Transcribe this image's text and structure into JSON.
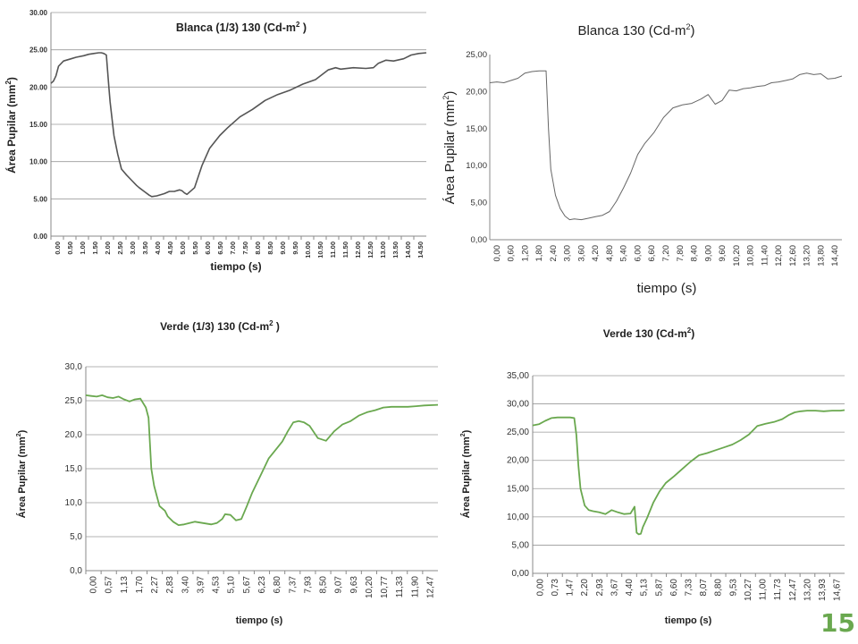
{
  "page_number": "15",
  "chart_data": [
    {
      "id": "c1",
      "type": "line",
      "title_main": "Blanca  (1/3) 130 (Cd-m",
      "title_sup": "2",
      "title_tail": " )",
      "ylabel_main": "Área Pupilar  (mm",
      "ylabel_sup": "2",
      "ylabel_tail": ")",
      "xlabel": "tiempo (s)",
      "ylim": [
        0,
        30
      ],
      "yticks": [
        "0.00",
        "5.00",
        "10.00",
        "15.00",
        "20.00",
        "25.00",
        "30.00"
      ],
      "xticks": [
        "0.00",
        "0.50",
        "1.00",
        "1.50",
        "2.00",
        "2.50",
        "3.00",
        "3.50",
        "4.00",
        "4.50",
        "5.00",
        "5.50",
        "6.00",
        "6.50",
        "7.00",
        "7.50",
        "8.00",
        "8.50",
        "9.00",
        "9.50",
        "10.00",
        "10.50",
        "11.00",
        "11.50",
        "12.00",
        "12.50",
        "13.00",
        "13.50",
        "14.00",
        "14.50"
      ],
      "xlim": [
        0,
        14.9
      ],
      "line_color": "#555555",
      "grid": true,
      "series": [
        {
          "x": [
            0,
            0.1,
            0.2,
            0.3,
            0.5,
            0.8,
            1.0,
            1.3,
            1.5,
            1.7,
            1.9,
            2.0,
            2.1,
            2.2,
            2.3,
            2.35,
            2.5,
            2.65,
            2.8,
            3.0,
            3.2,
            3.4,
            3.5,
            3.7,
            3.9,
            4.0,
            4.2,
            4.5,
            4.7,
            4.9,
            5.1,
            5.2,
            5.3,
            5.4,
            5.5,
            5.7,
            6.0,
            6.3,
            6.7,
            7.0,
            7.5,
            8.0,
            8.5,
            9.0,
            9.5,
            10.0,
            10.5,
            11.0,
            11.3,
            11.5,
            12.0,
            12.5,
            12.8,
            13.0,
            13.3,
            13.6,
            14.0,
            14.3,
            14.6,
            14.9
          ],
          "y": [
            20.5,
            20.8,
            21.5,
            22.8,
            23.5,
            23.8,
            24.0,
            24.2,
            24.4,
            24.5,
            24.6,
            24.6,
            24.5,
            24.3,
            20.0,
            18.0,
            13.5,
            11.0,
            9.0,
            8.2,
            7.5,
            6.8,
            6.5,
            6.0,
            5.5,
            5.3,
            5.4,
            5.7,
            6.0,
            6.0,
            6.2,
            6.1,
            5.8,
            5.6,
            5.9,
            6.5,
            9.5,
            11.8,
            13.5,
            14.5,
            16.0,
            17.0,
            18.2,
            19.0,
            19.6,
            20.4,
            21.0,
            22.3,
            22.6,
            22.4,
            22.6,
            22.5,
            22.6,
            23.2,
            23.6,
            23.5,
            23.8,
            24.3,
            24.5,
            24.6
          ]
        }
      ]
    },
    {
      "id": "c2",
      "type": "line",
      "title_main": "Blanca 130  (Cd-m",
      "title_sup": "2",
      "title_tail": ")",
      "ylabel_main": "Área Pupilar  (mm",
      "ylabel_sup": "2",
      "ylabel_tail": ")",
      "xlabel": "tiempo (s)",
      "ylim": [
        0,
        25
      ],
      "yticks": [
        "0,00",
        "5,00",
        "10,00",
        "15,00",
        "20,00",
        "25,00"
      ],
      "xticks": [
        "0,00",
        "0,60",
        "1,20",
        "1,80",
        "2,40",
        "3,00",
        "3,60",
        "4,20",
        "4,80",
        "5,40",
        "6,00",
        "6,60",
        "7,20",
        "7,80",
        "8,40",
        "9,00",
        "9,60",
        "10,20",
        "10,80",
        "11,40",
        "12,00",
        "12,60",
        "13,20",
        "13,80",
        "14,40"
      ],
      "xlim": [
        0,
        15.0
      ],
      "line_color": "#666666",
      "grid": false,
      "series": [
        {
          "x": [
            0,
            0.3,
            0.6,
            0.9,
            1.2,
            1.5,
            1.8,
            2.1,
            2.4,
            2.5,
            2.6,
            2.8,
            3.0,
            3.2,
            3.4,
            3.6,
            3.9,
            4.2,
            4.5,
            4.8,
            5.1,
            5.4,
            5.7,
            6.0,
            6.3,
            6.6,
            7.0,
            7.4,
            7.8,
            8.2,
            8.6,
            9.0,
            9.3,
            9.6,
            9.9,
            10.2,
            10.5,
            10.8,
            11.1,
            11.4,
            11.7,
            12.0,
            12.3,
            12.6,
            12.9,
            13.2,
            13.5,
            13.8,
            14.1,
            14.4,
            14.7,
            15.0
          ],
          "y": [
            21.2,
            21.3,
            21.2,
            21.5,
            21.8,
            22.5,
            22.7,
            22.8,
            22.8,
            15.0,
            9.5,
            6.0,
            4.2,
            3.2,
            2.7,
            2.8,
            2.7,
            2.9,
            3.1,
            3.3,
            3.8,
            5.2,
            7.0,
            9.0,
            11.5,
            13.0,
            14.5,
            16.5,
            17.8,
            18.2,
            18.4,
            19.0,
            19.6,
            18.3,
            18.8,
            20.2,
            20.1,
            20.4,
            20.5,
            20.7,
            20.8,
            21.2,
            21.3,
            21.5,
            21.7,
            22.3,
            22.5,
            22.3,
            22.4,
            21.7,
            21.8,
            22.1
          ]
        }
      ]
    },
    {
      "id": "c3",
      "type": "line",
      "title_main": "Verde (1/3) 130 (Cd-m",
      "title_sup": "2",
      "title_tail": " )",
      "ylabel_main": "Área Pupilar  (mm",
      "ylabel_sup": "2",
      "ylabel_tail": ")",
      "xlabel": "tiempo (s)",
      "ylim": [
        0,
        30
      ],
      "yticks": [
        "0,0",
        "5,0",
        "10,0",
        "15,0",
        "20,0",
        "25,0",
        "30,0"
      ],
      "xticks": [
        "0,00",
        "0,57",
        "1,13",
        "1,70",
        "2,27",
        "2,83",
        "3,40",
        "3,97",
        "4,53",
        "5,10",
        "5,67",
        "6,23",
        "6,80",
        "7,37",
        "7,93",
        "8,50",
        "9,07",
        "9,63",
        "10,20",
        "10,77",
        "11,33",
        "11,90",
        "12,47"
      ],
      "xlim": [
        0,
        12.9
      ],
      "line_color": "#6aa84f",
      "grid": true,
      "series": [
        {
          "x": [
            0,
            0.2,
            0.4,
            0.6,
            0.8,
            1.0,
            1.2,
            1.4,
            1.6,
            1.8,
            2.0,
            2.2,
            2.3,
            2.4,
            2.5,
            2.6,
            2.7,
            2.9,
            3.0,
            3.2,
            3.4,
            3.6,
            3.8,
            4.0,
            4.3,
            4.6,
            4.8,
            5.0,
            5.1,
            5.3,
            5.5,
            5.7,
            5.9,
            6.1,
            6.4,
            6.7,
            7.0,
            7.2,
            7.4,
            7.6,
            7.8,
            8.0,
            8.2,
            8.5,
            8.8,
            9.1,
            9.4,
            9.7,
            10.0,
            10.3,
            10.6,
            10.9,
            11.2,
            11.5,
            11.8,
            12.1,
            12.4,
            12.9
          ],
          "y": [
            25.8,
            25.7,
            25.6,
            25.8,
            25.5,
            25.4,
            25.6,
            25.2,
            24.9,
            25.2,
            25.3,
            24.0,
            22.5,
            15.0,
            12.5,
            11.0,
            9.5,
            8.8,
            8.0,
            7.2,
            6.7,
            6.8,
            7.0,
            7.2,
            7.0,
            6.8,
            7.0,
            7.6,
            8.3,
            8.2,
            7.4,
            7.6,
            9.5,
            11.5,
            14.0,
            16.5,
            18.0,
            19.0,
            20.5,
            21.8,
            22.0,
            21.8,
            21.3,
            19.5,
            19.1,
            20.5,
            21.5,
            22.0,
            22.8,
            23.3,
            23.6,
            24.0,
            24.1,
            24.1,
            24.1,
            24.2,
            24.3,
            24.4
          ]
        }
      ]
    },
    {
      "id": "c4",
      "type": "line",
      "title_main": "Verde 130 (Cd-m",
      "title_sup": "2",
      "title_tail": ")",
      "ylabel_main": "Área Pupilar  (mm",
      "ylabel_sup": "2",
      "ylabel_tail": ")",
      "xlabel": "tiempo (s)",
      "ylim": [
        0,
        35
      ],
      "yticks": [
        "0,00",
        "5,00",
        "10,00",
        "15,00",
        "20,00",
        "25,00",
        "30,00",
        "35,00"
      ],
      "xticks": [
        "0,00",
        "0,73",
        "1,47",
        "2,20",
        "2,93",
        "3,67",
        "4,40",
        "5,13",
        "5,87",
        "6,60",
        "7,33",
        "8,07",
        "8,80",
        "9,53",
        "10,27",
        "11,00",
        "11,73",
        "12,47",
        "13,20",
        "13,93",
        "14,67"
      ],
      "xlim": [
        0,
        15.0
      ],
      "line_color": "#6aa84f",
      "grid": true,
      "series": [
        {
          "x": [
            0,
            0.3,
            0.6,
            0.9,
            1.2,
            1.5,
            1.8,
            2.0,
            2.1,
            2.2,
            2.3,
            2.5,
            2.7,
            2.9,
            3.2,
            3.5,
            3.8,
            4.1,
            4.4,
            4.7,
            4.9,
            5.0,
            5.1,
            5.2,
            5.3,
            5.5,
            5.8,
            6.1,
            6.4,
            6.8,
            7.2,
            7.6,
            8.0,
            8.4,
            8.8,
            9.2,
            9.6,
            10.0,
            10.4,
            10.8,
            11.2,
            11.6,
            12.0,
            12.3,
            12.6,
            12.9,
            13.2,
            13.6,
            14.0,
            14.4,
            14.8,
            15.0
          ],
          "y": [
            26.2,
            26.4,
            27.0,
            27.5,
            27.6,
            27.6,
            27.6,
            27.5,
            24.5,
            19.0,
            15.0,
            12.0,
            11.2,
            11.0,
            10.8,
            10.5,
            11.2,
            10.8,
            10.5,
            10.6,
            11.8,
            7.2,
            6.9,
            7.0,
            8.2,
            9.8,
            12.5,
            14.5,
            16.0,
            17.2,
            18.5,
            19.8,
            20.9,
            21.3,
            21.8,
            22.3,
            22.8,
            23.6,
            24.6,
            26.1,
            26.5,
            26.8,
            27.3,
            28.0,
            28.5,
            28.7,
            28.8,
            28.8,
            28.7,
            28.8,
            28.8,
            28.9
          ]
        }
      ]
    }
  ]
}
